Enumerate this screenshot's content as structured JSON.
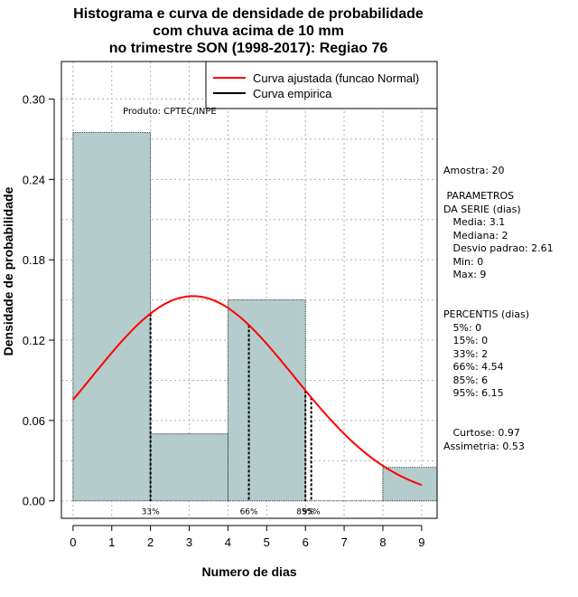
{
  "chart_data": {
    "type": "bar",
    "title_lines": [
      "Histograma e curva de densidade de probabilidade",
      "com chuva acima de 10 mm",
      "no trimestre SON (1998-2017): Regiao 76"
    ],
    "xlabel": "Numero de dias",
    "ylabel": "Densidade de probabilidade",
    "xlim": [
      -0.3,
      9.4
    ],
    "ylim": [
      -0.013,
      0.328
    ],
    "x_ticks": [
      "0",
      "1",
      "2",
      "3",
      "4",
      "5",
      "6",
      "7",
      "8",
      "9"
    ],
    "y_ticks": [
      "0.00",
      "0.06",
      "0.12",
      "0.18",
      "0.24",
      "0.30"
    ],
    "histogram": [
      {
        "x0": 0,
        "x1": 2,
        "density": 0.275
      },
      {
        "x0": 2,
        "x1": 4,
        "density": 0.05
      },
      {
        "x0": 4,
        "x1": 6,
        "density": 0.15
      },
      {
        "x0": 6,
        "x1": 8,
        "density": 0.0
      },
      {
        "x0": 8,
        "x1": 10,
        "density": 0.025
      }
    ],
    "normal_curve": {
      "mean": 3.1,
      "sd": 2.61,
      "x_start": 0,
      "x_end": 9
    },
    "percentile_lines": [
      {
        "label": "33%",
        "x": 2
      },
      {
        "label": "66%",
        "x": 4.54
      },
      {
        "label": "85%",
        "x": 6
      },
      {
        "label": "95%",
        "x": 6.15
      }
    ],
    "legend": [
      {
        "label": "Curva ajustada (funcao Normal)",
        "color": "#ff0000"
      },
      {
        "label": "Curva empirica",
        "color": "#000000"
      }
    ],
    "product_note": "Produto: CPTEC/INPE",
    "colors": {
      "bar_fill": "#b4cccc",
      "curve": "#ff0000",
      "grid": "#b0b0b0"
    }
  },
  "side_panel": {
    "amostra": "Amostra: 20",
    "param_title_1": " PARAMETROS",
    "param_title_2": "DA SERIE (dias)",
    "media": "   Media: 3.1",
    "mediana": "   Mediana: 2",
    "desvio": "   Desvio padrao: 2.61",
    "min": "   Min: 0",
    "max": "   Max: 9",
    "percentis_title": "PERCENTIS (dias)",
    "p5": "   5%: 0",
    "p15": "   15%: 0",
    "p33": "   33%: 2",
    "p66": "   66%: 4.54",
    "p85": "   85%: 6",
    "p95": "   95%: 6.15",
    "curtose": "   Curtose: 0.97",
    "assimetria": "Assimetria: 0.53"
  }
}
